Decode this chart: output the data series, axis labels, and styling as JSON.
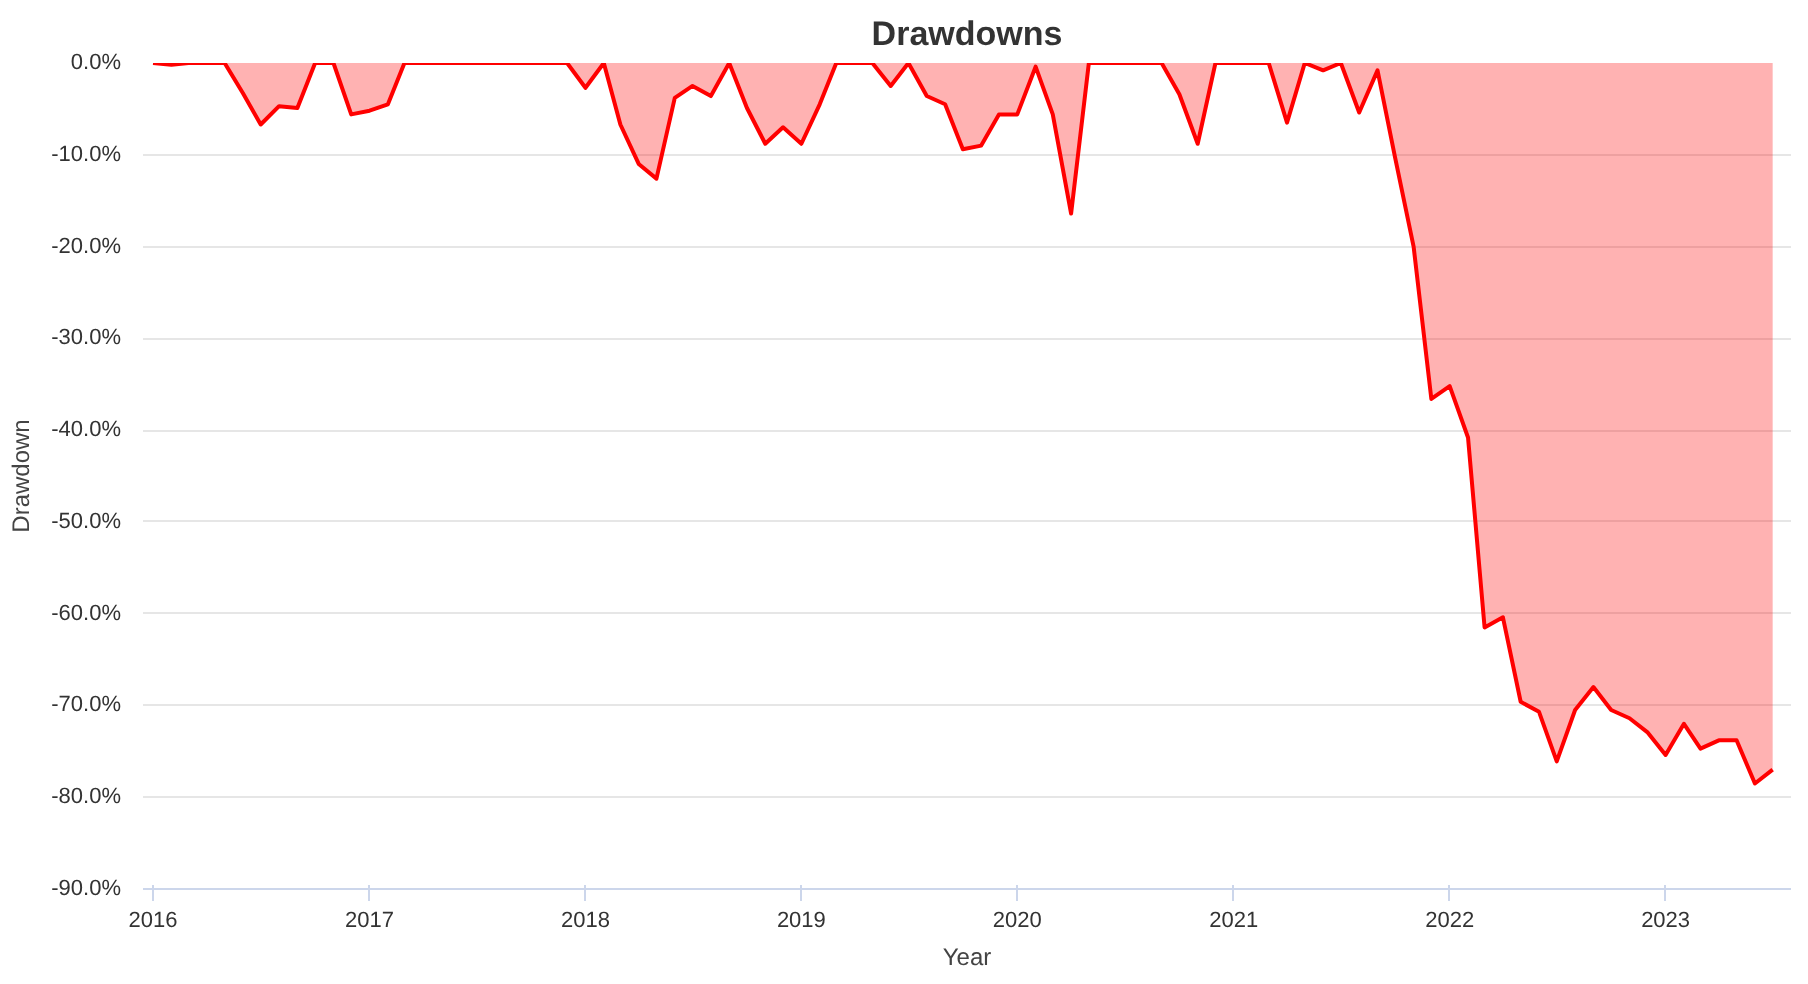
{
  "chart_data": {
    "type": "area",
    "title": "Drawdowns",
    "xlabel": "Year",
    "ylabel": "Drawdown",
    "x": [
      "2016-01",
      "2016-02",
      "2016-03",
      "2016-04",
      "2016-05",
      "2016-06",
      "2016-07",
      "2016-08",
      "2016-09",
      "2016-10",
      "2016-11",
      "2016-12",
      "2017-01",
      "2017-02",
      "2017-03",
      "2017-04",
      "2017-05",
      "2017-06",
      "2017-07",
      "2017-08",
      "2017-09",
      "2017-10",
      "2017-11",
      "2017-12",
      "2018-01",
      "2018-02",
      "2018-03",
      "2018-04",
      "2018-05",
      "2018-06",
      "2018-07",
      "2018-08",
      "2018-09",
      "2018-10",
      "2018-11",
      "2018-12",
      "2019-01",
      "2019-02",
      "2019-03",
      "2019-04",
      "2019-05",
      "2019-06",
      "2019-07",
      "2019-08",
      "2019-09",
      "2019-10",
      "2019-11",
      "2019-12",
      "2020-01",
      "2020-02",
      "2020-03",
      "2020-04",
      "2020-05",
      "2020-06",
      "2020-07",
      "2020-08",
      "2020-09",
      "2020-10",
      "2020-11",
      "2020-12",
      "2021-01",
      "2021-02",
      "2021-03",
      "2021-04",
      "2021-05",
      "2021-06",
      "2021-07",
      "2021-08",
      "2021-09",
      "2021-10",
      "2021-11",
      "2021-12",
      "2022-01",
      "2022-02",
      "2022-03",
      "2022-04",
      "2022-05",
      "2022-06",
      "2022-07",
      "2022-08",
      "2022-09",
      "2022-10",
      "2022-11",
      "2022-12",
      "2023-01",
      "2023-02",
      "2023-03",
      "2023-04",
      "2023-05",
      "2023-06",
      "2023-07"
    ],
    "series": [
      {
        "color": "#ff0000",
        "values": [
          0,
          -0.2,
          0,
          0,
          0,
          -3.3,
          -6.7,
          -4.7,
          -4.9,
          0,
          0,
          -5.6,
          -5.2,
          -4.5,
          0,
          0,
          0,
          0,
          0,
          0,
          0,
          0,
          0,
          0,
          -2.7,
          0,
          -6.7,
          -11,
          -12.6,
          -3.8,
          -2.5,
          -3.6,
          0,
          -4.9,
          -8.8,
          -7.0,
          -8.8,
          -4.5,
          0,
          0,
          0,
          -2.5,
          0,
          -3.6,
          -4.5,
          -9.4,
          -9.0,
          -5.6,
          -5.6,
          -0.4,
          -5.6,
          -16.4,
          0,
          0,
          0,
          0,
          0,
          -3.4,
          -8.8,
          0,
          0,
          0,
          0,
          -6.5,
          0,
          -0.8,
          0,
          -5.4,
          -0.8,
          -10.4,
          -20,
          -36.6,
          -35.2,
          -40.8,
          -61.5,
          -60.4,
          -69.6,
          -70.7,
          -76.1,
          -70.5,
          -68.0,
          -70.5,
          -71.4,
          -72.9,
          -75.4,
          -72.0,
          -74.7,
          -73.8,
          -73.8,
          -78.5,
          -77.0
        ]
      }
    ],
    "xlim": [
      "2015-12-15",
      "2023-08-01"
    ],
    "xticks": [
      "2016",
      "2017",
      "2018",
      "2019",
      "2020",
      "2021",
      "2022",
      "2023"
    ],
    "ylim": [
      -90,
      0
    ],
    "yticks": [
      {
        "value": 0,
        "label": "0.0%"
      },
      {
        "value": -10,
        "label": "-10.0%"
      },
      {
        "value": -20,
        "label": "-20.0%"
      },
      {
        "value": -30,
        "label": "-30.0%"
      },
      {
        "value": -40,
        "label": "-40.0%"
      },
      {
        "value": -50,
        "label": "-50.0%"
      },
      {
        "value": -60,
        "label": "-60.0%"
      },
      {
        "value": -70,
        "label": "-70.0%"
      },
      {
        "value": -80,
        "label": "-80.0%"
      },
      {
        "value": -90,
        "label": "-90.0%"
      }
    ],
    "grid": "y",
    "marker": "none",
    "line_style": "solid"
  }
}
